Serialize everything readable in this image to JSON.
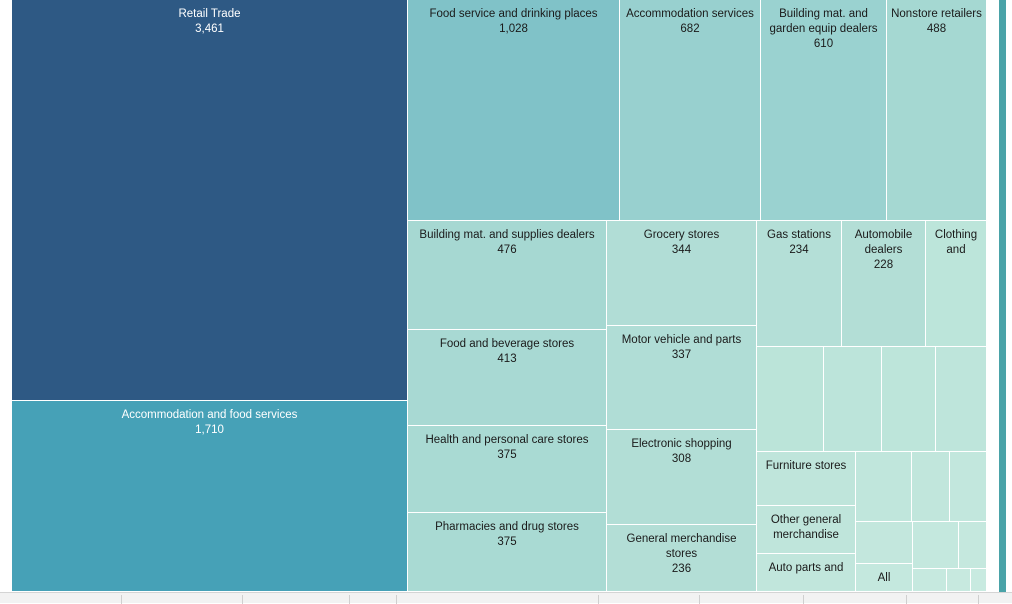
{
  "chart_data": {
    "type": "treemap",
    "categories": [
      {
        "name": "Retail Trade",
        "value": 3461,
        "color": "#2e5984"
      },
      {
        "name": "Accommodation and food services",
        "value": 1710,
        "color": "#46a1b7"
      }
    ],
    "items": [
      {
        "label": "Food service and drinking places",
        "value": 1028,
        "color": "#80c2c8"
      },
      {
        "label": "Accommodation services",
        "value": 682,
        "color": "#98d0cf"
      },
      {
        "label": "Building mat. and garden equip dealers",
        "value": 610,
        "color": "#9ad2d0"
      },
      {
        "label": "Nonstore retailers",
        "value": 488,
        "color": "#a5d8d2"
      },
      {
        "label": "Building mat. and supplies dealers",
        "value": 476,
        "color": "#a6d8d2"
      },
      {
        "label": "Grocery stores",
        "value": 344,
        "color": "#b1ddd6"
      },
      {
        "label": "Gas stations",
        "value": 234,
        "color": "#b4dfd7"
      },
      {
        "label": "Automobile dealers",
        "value": 228,
        "color": "#b3ded6"
      },
      {
        "label": "Clothing and",
        "value": null,
        "color": "#bce5da"
      },
      {
        "label": "Food and beverage stores",
        "value": 413,
        "color": "#a8d9d3"
      },
      {
        "label": "Motor vehicle and parts",
        "value": 337,
        "color": "#b0ddd6"
      },
      {
        "label": "Health and personal care stores",
        "value": 375,
        "color": "#a9dad3"
      },
      {
        "label": "Electronic shopping",
        "value": 308,
        "color": "#b2ded6"
      },
      {
        "label": "Pharmacies and drug stores",
        "value": 375,
        "color": "#a9dad3"
      },
      {
        "label": "General merchandise stores",
        "value": 236,
        "color": "#b3ded6"
      },
      {
        "label": "Furniture stores",
        "value": null,
        "color": "#bfe5db"
      },
      {
        "label": "Other general merchandise",
        "value": null,
        "color": "#bfe5db"
      },
      {
        "label": "Auto parts and",
        "value": null,
        "color": "#c1e6dc"
      },
      {
        "label": "All",
        "value": null,
        "color": "#c4e8de"
      },
      {
        "label": "",
        "value": null,
        "color": "#bbe4d9"
      },
      {
        "label": "",
        "value": null,
        "color": "#bce4da"
      },
      {
        "label": "",
        "value": null,
        "color": "#bde5da"
      },
      {
        "label": "",
        "value": null,
        "color": "#bee5db"
      },
      {
        "label": "",
        "value": null,
        "color": "#c0e6dc"
      },
      {
        "label": "",
        "value": null,
        "color": "#c1e6dc"
      },
      {
        "label": "",
        "value": null,
        "color": "#c2e7dd"
      },
      {
        "label": "",
        "value": null,
        "color": "#c3e7dd"
      },
      {
        "label": "",
        "value": null,
        "color": "#c4e8de"
      },
      {
        "label": "",
        "value": null,
        "color": "#c5e8de"
      },
      {
        "label": "",
        "value": null,
        "color": "#c6e9df"
      },
      {
        "label": "",
        "value": null,
        "color": "#c7e9df"
      },
      {
        "label": "",
        "value": null,
        "color": "#c8eae0"
      }
    ]
  }
}
